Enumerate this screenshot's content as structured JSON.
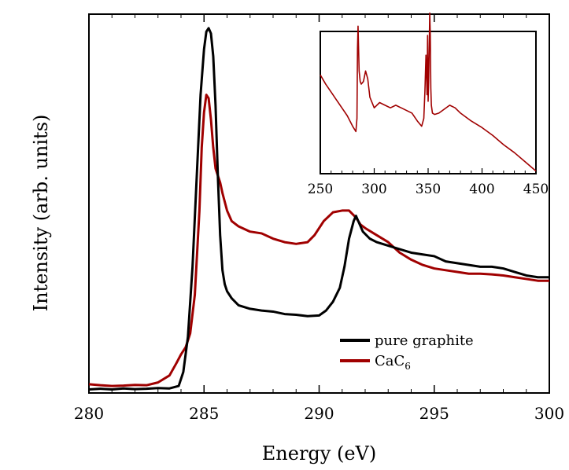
{
  "chart_data": [
    {
      "type": "line",
      "title": "",
      "xlabel": "Energy  (eV)",
      "ylabel": "Intensity  (arb. units)",
      "xlim": [
        280,
        300
      ],
      "ylim": [
        0,
        1.08
      ],
      "x_ticks": [
        280,
        285,
        290,
        295,
        300
      ],
      "y_ticks": [],
      "grid": false,
      "legend_position": "lower-right",
      "series": [
        {
          "name": "pure graphite",
          "label_main": "pure graphite",
          "label_sub": "",
          "color": "#000000",
          "x": [
            280.0,
            280.5,
            281.0,
            281.5,
            282.0,
            282.5,
            283.0,
            283.5,
            283.9,
            284.1,
            284.3,
            284.5,
            284.7,
            284.85,
            285.0,
            285.1,
            285.2,
            285.3,
            285.4,
            285.5,
            285.6,
            285.7,
            285.8,
            285.9,
            286.0,
            286.2,
            286.5,
            287.0,
            287.5,
            288.0,
            288.5,
            289.0,
            289.5,
            290.0,
            290.3,
            290.6,
            290.9,
            291.1,
            291.3,
            291.5,
            291.6,
            291.7,
            291.9,
            292.2,
            292.5,
            293.0,
            293.5,
            294.0,
            294.5,
            295.0,
            295.5,
            296.0,
            296.5,
            297.0,
            297.5,
            298.0,
            298.5,
            299.0,
            299.5,
            300.0
          ],
          "values": [
            0.01,
            0.012,
            0.01,
            0.013,
            0.011,
            0.012,
            0.014,
            0.013,
            0.02,
            0.06,
            0.16,
            0.36,
            0.64,
            0.85,
            0.98,
            1.03,
            1.04,
            1.025,
            0.96,
            0.82,
            0.62,
            0.45,
            0.35,
            0.31,
            0.29,
            0.27,
            0.25,
            0.24,
            0.235,
            0.232,
            0.225,
            0.223,
            0.219,
            0.221,
            0.235,
            0.26,
            0.3,
            0.36,
            0.44,
            0.49,
            0.505,
            0.49,
            0.46,
            0.44,
            0.43,
            0.42,
            0.41,
            0.4,
            0.395,
            0.39,
            0.375,
            0.37,
            0.365,
            0.36,
            0.36,
            0.355,
            0.345,
            0.335,
            0.33,
            0.33
          ]
        },
        {
          "name": "CaC6",
          "label_main": "CaC",
          "label_sub": "6",
          "color": "#a00000",
          "x": [
            280.0,
            280.5,
            281.0,
            281.5,
            282.0,
            282.5,
            283.0,
            283.5,
            283.8,
            284.0,
            284.2,
            284.4,
            284.6,
            284.8,
            284.9,
            285.0,
            285.1,
            285.2,
            285.3,
            285.4,
            285.5,
            285.6,
            285.7,
            285.8,
            286.0,
            286.2,
            286.5,
            287.0,
            287.5,
            288.0,
            288.5,
            289.0,
            289.5,
            289.8,
            290.2,
            290.6,
            291.0,
            291.3,
            291.6,
            291.8,
            292.0,
            292.5,
            293.0,
            293.5,
            294.0,
            294.5,
            295.0,
            295.5,
            296.0,
            296.5,
            297.0,
            297.5,
            298.0,
            298.5,
            299.0,
            299.5,
            300.0
          ],
          "values": [
            0.025,
            0.022,
            0.02,
            0.021,
            0.023,
            0.022,
            0.03,
            0.05,
            0.085,
            0.11,
            0.13,
            0.17,
            0.28,
            0.52,
            0.7,
            0.8,
            0.85,
            0.84,
            0.78,
            0.7,
            0.64,
            0.62,
            0.6,
            0.57,
            0.52,
            0.49,
            0.475,
            0.46,
            0.455,
            0.44,
            0.43,
            0.425,
            0.43,
            0.45,
            0.49,
            0.515,
            0.52,
            0.52,
            0.5,
            0.48,
            0.47,
            0.45,
            0.43,
            0.4,
            0.38,
            0.365,
            0.355,
            0.35,
            0.345,
            0.34,
            0.34,
            0.338,
            0.335,
            0.33,
            0.325,
            0.32,
            0.32
          ]
        }
      ]
    },
    {
      "type": "line",
      "title": "",
      "xlabel": "",
      "ylabel": "",
      "xlim": [
        250,
        450
      ],
      "ylim": [
        0,
        1.08
      ],
      "x_ticks": [
        250,
        300,
        350,
        400,
        450
      ],
      "y_ticks": [],
      "grid": false,
      "series": [
        {
          "color": "#a00000",
          "x": [
            250,
            255,
            260,
            265,
            270,
            275,
            280,
            283,
            284,
            284.5,
            285,
            286,
            287,
            288,
            290,
            292,
            294,
            296,
            300,
            305,
            310,
            315,
            320,
            325,
            330,
            335,
            340,
            344,
            346,
            347,
            348,
            349,
            349.5,
            350,
            350.5,
            351,
            351.5,
            352,
            352.5,
            353,
            354,
            356,
            360,
            365,
            370,
            375,
            380,
            390,
            400,
            410,
            420,
            430,
            440,
            450
          ],
          "values": [
            0.75,
            0.68,
            0.62,
            0.56,
            0.5,
            0.44,
            0.36,
            0.32,
            0.42,
            0.95,
            1.12,
            0.78,
            0.7,
            0.68,
            0.7,
            0.78,
            0.72,
            0.58,
            0.5,
            0.54,
            0.52,
            0.5,
            0.52,
            0.5,
            0.48,
            0.46,
            0.4,
            0.36,
            0.42,
            0.62,
            0.9,
            0.6,
            1.05,
            0.55,
            0.7,
            0.95,
            1.22,
            1.05,
            0.65,
            0.52,
            0.46,
            0.45,
            0.46,
            0.49,
            0.52,
            0.5,
            0.46,
            0.4,
            0.35,
            0.29,
            0.22,
            0.16,
            0.09,
            0.02
          ]
        }
      ]
    }
  ]
}
